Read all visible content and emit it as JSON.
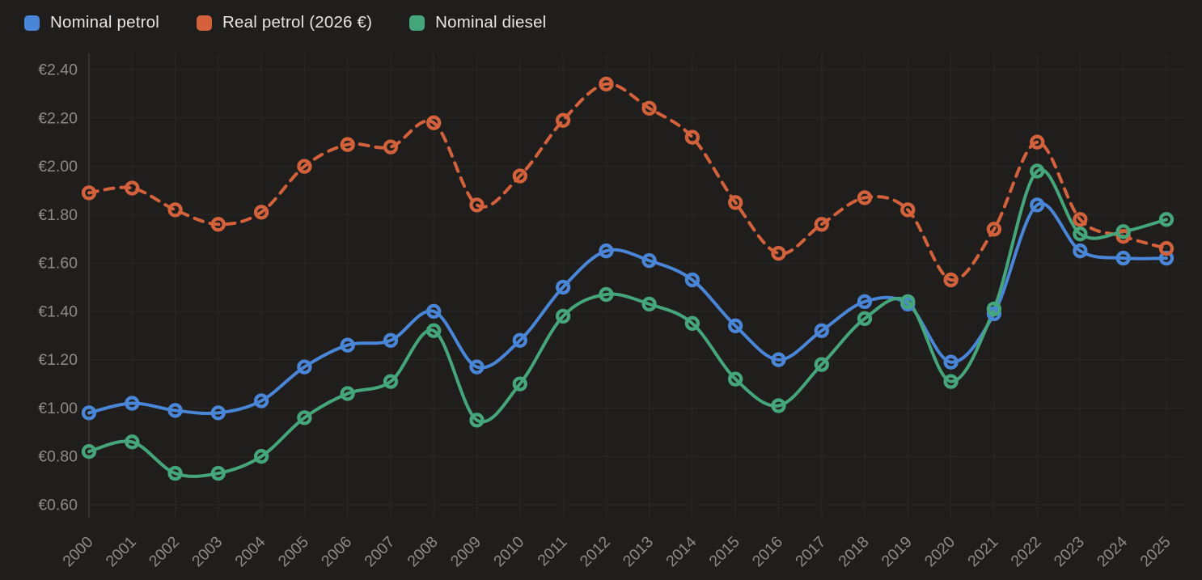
{
  "colors": {
    "background": "#201e1c",
    "gridline": "#2a2825",
    "axis_line": "#3b3835",
    "axis_text": "#8e8b86",
    "legend_text": "#e8e5e0",
    "blue": "#4a86d8",
    "orange": "#d2613c",
    "green": "#45a67b"
  },
  "chart_data": {
    "type": "line",
    "x": [
      2000,
      2001,
      2002,
      2003,
      2004,
      2005,
      2006,
      2007,
      2008,
      2009,
      2010,
      2011,
      2012,
      2013,
      2014,
      2015,
      2016,
      2017,
      2018,
      2019,
      2020,
      2021,
      2022,
      2023,
      2024,
      2025
    ],
    "series": [
      {
        "name": "Nominal petrol",
        "key": "nominal-petrol",
        "color": "#4a86d8",
        "dashed": false,
        "values": [
          0.98,
          1.02,
          0.99,
          0.98,
          1.03,
          1.17,
          1.26,
          1.28,
          1.4,
          1.17,
          1.28,
          1.5,
          1.65,
          1.61,
          1.53,
          1.34,
          1.2,
          1.32,
          1.44,
          1.43,
          1.19,
          1.39,
          1.84,
          1.65,
          1.62,
          1.62
        ]
      },
      {
        "name": "Real petrol (2026 €)",
        "key": "real-petrol",
        "color": "#d2613c",
        "dashed": true,
        "values": [
          1.89,
          1.91,
          1.82,
          1.76,
          1.81,
          2.0,
          2.09,
          2.08,
          2.18,
          1.84,
          1.96,
          2.19,
          2.34,
          2.24,
          2.12,
          1.85,
          1.64,
          1.76,
          1.87,
          1.82,
          1.53,
          1.74,
          2.1,
          1.78,
          1.71,
          1.66
        ]
      },
      {
        "name": "Nominal diesel",
        "key": "nominal-diesel",
        "color": "#45a67b",
        "dashed": false,
        "values": [
          0.82,
          0.86,
          0.73,
          0.73,
          0.8,
          0.96,
          1.06,
          1.11,
          1.32,
          0.95,
          1.1,
          1.38,
          1.47,
          1.43,
          1.35,
          1.12,
          1.01,
          1.18,
          1.37,
          1.44,
          1.11,
          1.41,
          1.98,
          1.72,
          1.73,
          1.78
        ]
      }
    ],
    "ylim": [
      0.6,
      2.4
    ],
    "ytick_step": 0.2,
    "currency_prefix": "€",
    "grid": true,
    "legend_position": "top-left",
    "title": "",
    "xlabel": "",
    "ylabel": ""
  }
}
